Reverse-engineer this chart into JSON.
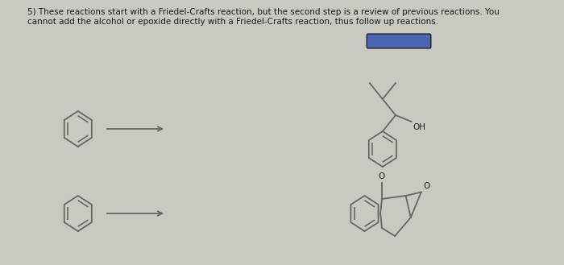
{
  "background_color": "#cbc8c2",
  "text_main": "5) These reactions start with a Friedel-Crafts reaction, but the second step is a review of previous reactions. You\ncannot add the alcohol or epoxide directly with a Friedel-Crafts reaction, thus follow up reactions.",
  "text_fontsize": 7.5,
  "text_color": "#1a1a1a",
  "line_color": "#666666",
  "oh_label": "OH",
  "o_label": "O",
  "highlight_color": "#2244aa"
}
